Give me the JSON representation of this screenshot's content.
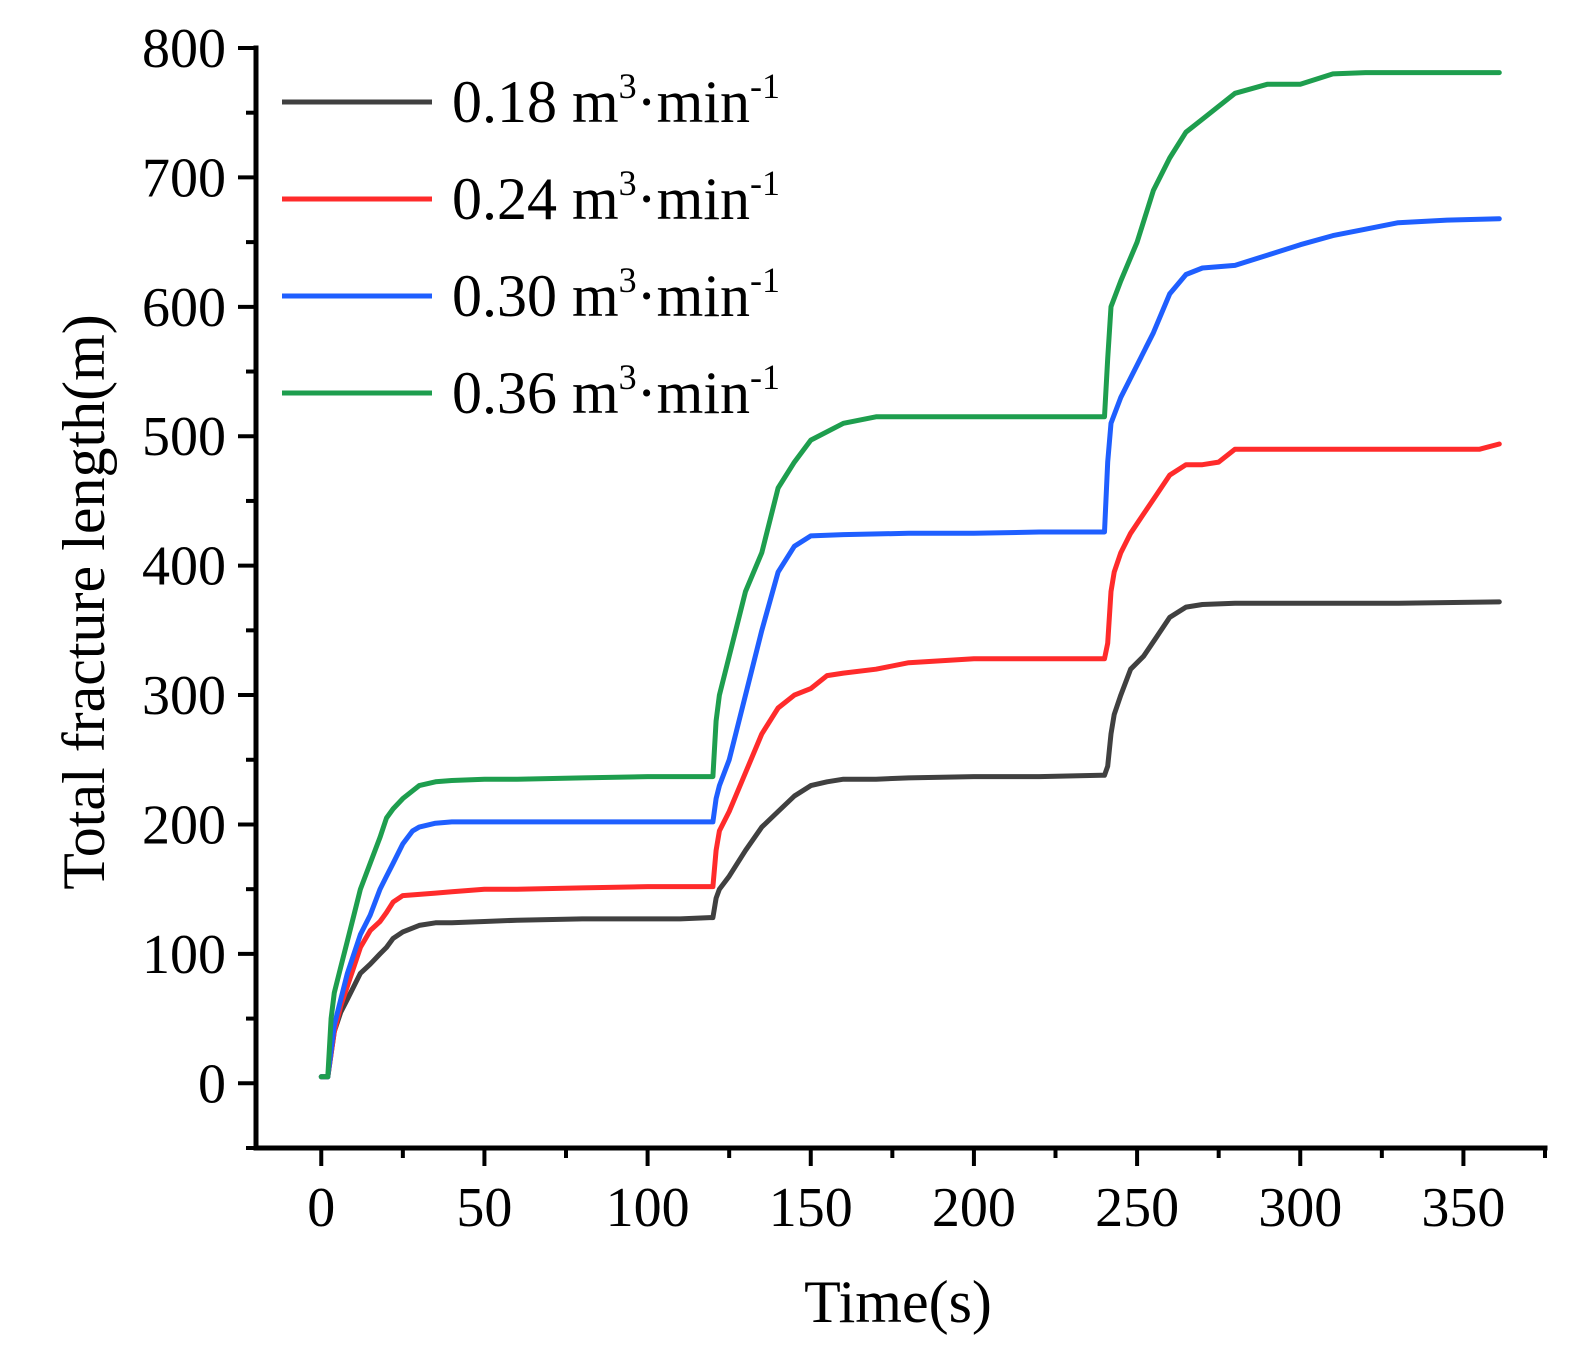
{
  "chart_data": {
    "type": "line",
    "title": "",
    "xlabel": "Time(s)",
    "ylabel": "Total fracture length(m)",
    "xlim": [
      -20,
      375
    ],
    "ylim": [
      -50,
      800
    ],
    "xticks": [
      0,
      50,
      100,
      150,
      200,
      250,
      300,
      350
    ],
    "yticks": [
      0,
      100,
      200,
      300,
      400,
      500,
      600,
      700,
      800
    ],
    "grid": false,
    "legend_position": "top-left",
    "series": [
      {
        "name": "0.18 m3·min-1",
        "label_main": "0.18 m",
        "label_sup1": "3",
        "label_mid": "·min",
        "label_sup2": "-1",
        "color": "#404040",
        "x": [
          0,
          2,
          4,
          6,
          8,
          10,
          12,
          15,
          18,
          20,
          22,
          25,
          30,
          35,
          40,
          50,
          60,
          80,
          100,
          110,
          119,
          120,
          121,
          122,
          125,
          130,
          135,
          140,
          145,
          150,
          155,
          160,
          170,
          180,
          200,
          220,
          239,
          240,
          241,
          242,
          243,
          245,
          248,
          252,
          256,
          260,
          265,
          270,
          280,
          300,
          330,
          361
        ],
        "values": [
          5,
          5,
          40,
          55,
          65,
          75,
          85,
          92,
          100,
          105,
          112,
          117,
          122,
          124,
          124,
          125,
          126,
          127,
          127,
          127,
          128,
          128,
          143,
          150,
          160,
          180,
          198,
          210,
          222,
          230,
          233,
          235,
          235,
          236,
          237,
          237,
          238,
          238,
          245,
          270,
          285,
          300,
          320,
          330,
          345,
          360,
          368,
          370,
          371,
          371,
          371,
          372
        ]
      },
      {
        "name": "0.24 m3·min-1",
        "label_main": "0.24 m",
        "label_sup1": "3",
        "label_mid": "·min",
        "label_sup2": "-1",
        "color": "#ff2b2b",
        "x": [
          0,
          2,
          4,
          6,
          8,
          10,
          12,
          15,
          18,
          20,
          22,
          25,
          30,
          35,
          40,
          50,
          60,
          80,
          100,
          110,
          119,
          120,
          121,
          122,
          125,
          130,
          135,
          140,
          145,
          150,
          155,
          160,
          170,
          180,
          200,
          220,
          239,
          240,
          241,
          242,
          243,
          245,
          248,
          252,
          256,
          260,
          265,
          270,
          275,
          280,
          300,
          330,
          355,
          361
        ],
        "values": [
          5,
          5,
          40,
          60,
          75,
          90,
          105,
          118,
          125,
          132,
          140,
          145,
          146,
          147,
          148,
          150,
          150,
          151,
          152,
          152,
          152,
          152,
          180,
          195,
          210,
          240,
          270,
          290,
          300,
          305,
          315,
          317,
          320,
          325,
          328,
          328,
          328,
          328,
          340,
          380,
          395,
          410,
          425,
          440,
          455,
          470,
          478,
          478,
          480,
          490,
          490,
          490,
          490,
          494
        ]
      },
      {
        "name": "0.30 m3·min-1",
        "label_main": "0.30 m",
        "label_sup1": "3",
        "label_mid": "·min",
        "label_sup2": "-1",
        "color": "#1f5fff",
        "x": [
          0,
          2,
          4,
          6,
          8,
          10,
          12,
          15,
          18,
          20,
          22,
          25,
          28,
          30,
          35,
          40,
          50,
          60,
          80,
          100,
          110,
          119,
          120,
          121,
          122,
          125,
          130,
          135,
          140,
          145,
          150,
          160,
          180,
          200,
          220,
          239,
          240,
          241,
          242,
          245,
          250,
          255,
          260,
          265,
          270,
          280,
          290,
          300,
          310,
          320,
          330,
          345,
          361
        ],
        "values": [
          5,
          5,
          45,
          65,
          85,
          100,
          115,
          130,
          150,
          160,
          170,
          185,
          195,
          198,
          201,
          202,
          202,
          202,
          202,
          202,
          202,
          202,
          202,
          220,
          230,
          250,
          300,
          350,
          395,
          415,
          423,
          424,
          425,
          425,
          426,
          426,
          426,
          480,
          510,
          530,
          555,
          580,
          610,
          625,
          630,
          632,
          640,
          648,
          655,
          660,
          665,
          667,
          668
        ]
      },
      {
        "name": "0.36 m3·min-1",
        "label_main": "0.36 m",
        "label_sup1": "3",
        "label_mid": "·min",
        "label_sup2": "-1",
        "color": "#1e9e4e",
        "x": [
          0,
          2,
          3,
          4,
          6,
          8,
          10,
          12,
          15,
          18,
          20,
          22,
          25,
          28,
          30,
          35,
          40,
          50,
          60,
          80,
          100,
          110,
          119,
          120,
          121,
          122,
          125,
          128,
          130,
          135,
          140,
          145,
          150,
          160,
          170,
          180,
          200,
          220,
          239,
          240,
          241,
          242,
          245,
          250,
          255,
          260,
          265,
          270,
          280,
          290,
          300,
          310,
          320,
          340,
          361
        ],
        "values": [
          5,
          5,
          50,
          70,
          90,
          110,
          130,
          150,
          170,
          190,
          205,
          212,
          220,
          226,
          230,
          233,
          234,
          235,
          235,
          236,
          237,
          237,
          237,
          237,
          280,
          300,
          330,
          360,
          380,
          410,
          460,
          480,
          497,
          510,
          515,
          515,
          515,
          515,
          515,
          515,
          560,
          600,
          620,
          650,
          690,
          715,
          735,
          745,
          765,
          772,
          772,
          780,
          781,
          781,
          781
        ]
      }
    ]
  }
}
